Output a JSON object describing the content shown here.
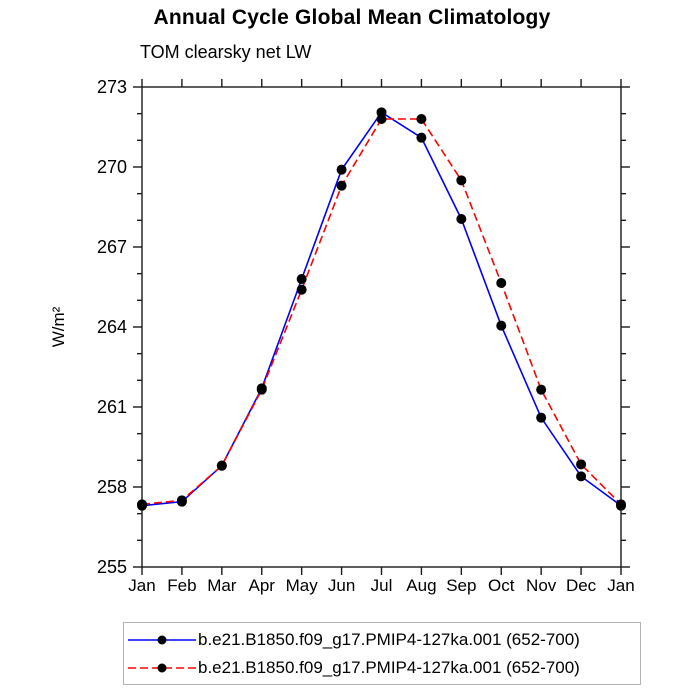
{
  "title": "Annual Cycle Global Mean Climatology",
  "subtitle": "TOM clearsky net LW",
  "chart_data": {
    "type": "line",
    "categories": [
      "Jan",
      "Feb",
      "Mar",
      "Apr",
      "May",
      "Jun",
      "Jul",
      "Aug",
      "Sep",
      "Oct",
      "Nov",
      "Dec",
      "Jan"
    ],
    "ylabel": "W/m²",
    "ylim": [
      255,
      273
    ],
    "yticks": [
      255,
      258,
      261,
      264,
      267,
      270,
      273
    ],
    "y_minor_step": 1,
    "grid": false,
    "legend_position": "bottom",
    "axis_color": "#1a1a1a",
    "series": [
      {
        "name": "b.e21.B1850.f09_g17.PMIP4-127ka.001 (652-700)",
        "color": "#0000ff",
        "style": "solid",
        "marker": "circle",
        "marker_color": "#000000",
        "values": [
          257.3,
          257.45,
          258.8,
          261.7,
          265.8,
          269.9,
          272.05,
          271.1,
          268.05,
          264.05,
          260.6,
          258.4,
          257.3
        ]
      },
      {
        "name": "b.e21.B1850.f09_g17.PMIP4-127ka.001 (652-700)",
        "color": "#ff0000",
        "style": "dashed",
        "marker": "circle",
        "marker_color": "#000000",
        "values": [
          257.35,
          257.5,
          258.8,
          261.65,
          265.4,
          269.3,
          271.8,
          271.8,
          269.5,
          265.65,
          261.65,
          258.85,
          257.35
        ]
      }
    ]
  }
}
